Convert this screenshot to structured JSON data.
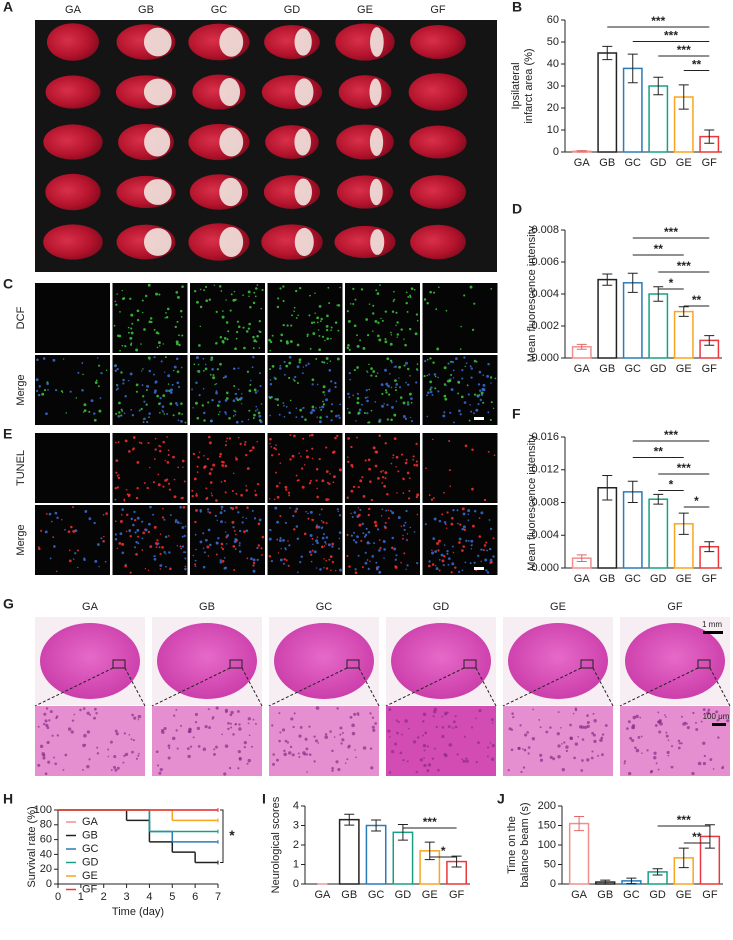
{
  "figure": {
    "panels": {
      "A": {
        "letter": "A",
        "groups": [
          "GA",
          "GB",
          "GC",
          "GD",
          "GE",
          "GF"
        ]
      },
      "C": {
        "letter": "C",
        "rows": [
          "DCF",
          "Merge"
        ]
      },
      "E": {
        "letter": "E",
        "rows": [
          "TUNEL",
          "Merge"
        ]
      },
      "G": {
        "letter": "G",
        "groups": [
          "GA",
          "GB",
          "GC",
          "GD",
          "GE",
          "GF"
        ],
        "scale_bars": [
          "1 mm",
          "100 μm"
        ]
      }
    }
  },
  "chart_data": [
    {
      "panel": "B",
      "type": "bar",
      "y_label": [
        "Ipsilateral",
        "infarct area (%)"
      ],
      "categories": [
        "GA",
        "GB",
        "GC",
        "GD",
        "GE",
        "GF"
      ],
      "colors": [
        "#f08f8f",
        "#222222",
        "#2b7bb9",
        "#17a085",
        "#f5a623",
        "#e8383d"
      ],
      "values": [
        0.3,
        45,
        38,
        30,
        25,
        7
      ],
      "errors": [
        0.3,
        3,
        6.5,
        4,
        5.5,
        3
      ],
      "ylim": [
        0,
        60
      ],
      "yticks": [
        0,
        10,
        20,
        30,
        40,
        50,
        60
      ],
      "significance": [
        {
          "from": "GB",
          "to": "GF",
          "label": "***"
        },
        {
          "from": "GC",
          "to": "GF",
          "label": "***"
        },
        {
          "from": "GD",
          "to": "GF",
          "label": "***"
        },
        {
          "from": "GE",
          "to": "GF",
          "label": "**"
        }
      ]
    },
    {
      "panel": "D",
      "type": "bar",
      "y_label": [
        "Mean fluorescence intensity"
      ],
      "categories": [
        "GA",
        "GB",
        "GC",
        "GD",
        "GE",
        "GF"
      ],
      "colors": [
        "#f08f8f",
        "#222222",
        "#2b7bb9",
        "#17a085",
        "#f5a623",
        "#e8383d"
      ],
      "values": [
        0.0007,
        0.0049,
        0.0047,
        0.004,
        0.0029,
        0.0011
      ],
      "errors": [
        0.00015,
        0.00035,
        0.0006,
        0.00045,
        0.0003,
        0.0003
      ],
      "ylim": [
        0,
        0.008
      ],
      "yticks": [
        {
          "value": 0,
          "label": "0.000"
        },
        {
          "value": 0.002,
          "label": "0.002"
        },
        {
          "value": 0.004,
          "label": "0.004"
        },
        {
          "value": 0.006,
          "label": "0.006"
        },
        {
          "value": 0.008,
          "label": "0.008"
        }
      ],
      "significance": [
        {
          "from": "GC",
          "to": "GF",
          "label": "***"
        },
        {
          "from": "GC",
          "to": "GE",
          "label": "**"
        },
        {
          "from": "GD",
          "to": "GF",
          "label": "***"
        },
        {
          "from": "GD",
          "to": "GE",
          "label": "*"
        },
        {
          "from": "GE",
          "to": "GF",
          "label": "**"
        }
      ]
    },
    {
      "panel": "F",
      "type": "bar",
      "y_label": [
        "Mean fluorescence intensity"
      ],
      "categories": [
        "GA",
        "GB",
        "GC",
        "GD",
        "GE",
        "GF"
      ],
      "colors": [
        "#f08f8f",
        "#222222",
        "#2b7bb9",
        "#17a085",
        "#f5a623",
        "#e8383d"
      ],
      "values": [
        0.0012,
        0.0098,
        0.0093,
        0.0084,
        0.0054,
        0.0026
      ],
      "errors": [
        0.0004,
        0.0015,
        0.0013,
        0.0006,
        0.0013,
        0.0006
      ],
      "ylim": [
        0,
        0.016
      ],
      "yticks": [
        {
          "value": 0,
          "label": "0.000"
        },
        {
          "value": 0.004,
          "label": "0.004"
        },
        {
          "value": 0.008,
          "label": "0.008"
        },
        {
          "value": 0.012,
          "label": "0.012"
        },
        {
          "value": 0.016,
          "label": "0.016"
        }
      ],
      "significance": [
        {
          "from": "GC",
          "to": "GF",
          "label": "***"
        },
        {
          "from": "GC",
          "to": "GE",
          "label": "**"
        },
        {
          "from": "GD",
          "to": "GF",
          "label": "***"
        },
        {
          "from": "GD",
          "to": "GE",
          "label": "*"
        },
        {
          "from": "GE",
          "to": "GF",
          "label": "*"
        }
      ]
    },
    {
      "panel": "H",
      "type": "line",
      "step": true,
      "x_label": "Time (day)",
      "y_label": [
        "Survival rate (%)"
      ],
      "xlim": [
        0,
        7
      ],
      "xticks": [
        0,
        1,
        2,
        3,
        4,
        5,
        6,
        7
      ],
      "ylim": [
        0,
        100
      ],
      "yticks": [
        0,
        20,
        40,
        60,
        80,
        100
      ],
      "legend": "top-left",
      "series": [
        {
          "name": "GA",
          "color": "#f08f8f",
          "x": [
            0,
            7
          ],
          "values": [
            100,
            100
          ]
        },
        {
          "name": "GB",
          "color": "#222222",
          "x": [
            0,
            3,
            4,
            5,
            6,
            7
          ],
          "values": [
            100,
            86,
            57,
            43,
            29,
            29
          ]
        },
        {
          "name": "GC",
          "color": "#2b7bb9",
          "x": [
            0,
            4,
            5,
            7
          ],
          "values": [
            100,
            71,
            57,
            57
          ]
        },
        {
          "name": "GD",
          "color": "#17a085",
          "x": [
            0,
            4,
            7
          ],
          "values": [
            100,
            71,
            71
          ]
        },
        {
          "name": "GE",
          "color": "#f5a623",
          "x": [
            0,
            5,
            7
          ],
          "values": [
            100,
            86,
            86
          ]
        },
        {
          "name": "GF",
          "color": "#e8383d",
          "x": [
            0,
            7
          ],
          "values": [
            100,
            100
          ]
        }
      ],
      "significance": [
        {
          "from": "GA",
          "to": "GB",
          "label": "*"
        }
      ]
    },
    {
      "panel": "I",
      "type": "bar",
      "y_label": [
        "Neurological scores"
      ],
      "categories": [
        "GA",
        "GB",
        "GC",
        "GD",
        "GE",
        "GF"
      ],
      "colors": [
        "#f08f8f",
        "#222222",
        "#2b7bb9",
        "#17a085",
        "#f5a623",
        "#e8383d"
      ],
      "values": [
        0,
        3.3,
        3.0,
        2.65,
        1.7,
        1.15
      ],
      "errors": [
        0,
        0.28,
        0.28,
        0.4,
        0.45,
        0.28
      ],
      "ylim": [
        0,
        4
      ],
      "yticks": [
        0,
        1,
        2,
        3,
        4
      ],
      "significance": [
        {
          "from": "GD",
          "to": "GF",
          "label": "***"
        },
        {
          "from": "GE",
          "to": "GF",
          "label": "*"
        }
      ]
    },
    {
      "panel": "J",
      "type": "bar",
      "y_label": [
        "Time on the",
        "balance beam (s)"
      ],
      "categories": [
        "GA",
        "GB",
        "GC",
        "GD",
        "GE",
        "GF"
      ],
      "colors": [
        "#f08f8f",
        "#222222",
        "#2b7bb9",
        "#17a085",
        "#f5a623",
        "#e8383d"
      ],
      "values": [
        155,
        5,
        8,
        31,
        67,
        122
      ],
      "errors": [
        18,
        5,
        7,
        8,
        25,
        30
      ],
      "ylim": [
        0,
        200
      ],
      "yticks": [
        0,
        50,
        100,
        150,
        200
      ],
      "significance": [
        {
          "from": "GD",
          "to": "GF",
          "label": "***"
        },
        {
          "from": "GE",
          "to": "GF",
          "label": "**"
        }
      ]
    }
  ]
}
